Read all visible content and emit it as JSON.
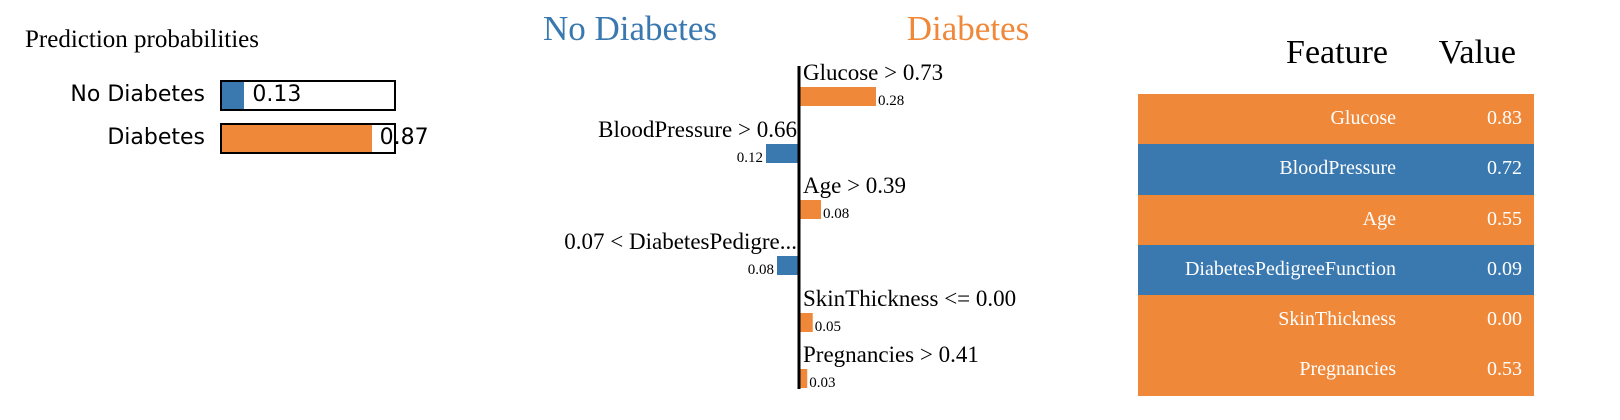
{
  "colors": {
    "negative": "#3a78b0",
    "positive": "#f0883a"
  },
  "probabilities": {
    "title": "Prediction probabilities",
    "rows": [
      {
        "label": "No Diabetes",
        "value": 0.13,
        "value_text": "0.13",
        "color": "#3a78b0"
      },
      {
        "label": "Diabetes",
        "value": 0.87,
        "value_text": "0.87",
        "color": "#f0883a"
      }
    ]
  },
  "chart_data": {
    "type": "bar",
    "orientation": "horizontal-diverging",
    "class_labels": {
      "negative": "No Diabetes",
      "positive": "Diabetes"
    },
    "features": [
      {
        "condition": "Glucose > 0.73",
        "weight": 0.28,
        "weight_text": "0.28",
        "side": "positive"
      },
      {
        "condition": "BloodPressure > 0.66",
        "weight": 0.12,
        "weight_text": "0.12",
        "side": "negative"
      },
      {
        "condition": "Age > 0.39",
        "weight": 0.08,
        "weight_text": "0.08",
        "side": "positive"
      },
      {
        "condition": "0.07 < DiabetesPedigre...",
        "weight": 0.08,
        "weight_text": "0.08",
        "side": "negative"
      },
      {
        "condition": "SkinThickness <= 0.00",
        "weight": 0.05,
        "weight_text": "0.05",
        "side": "positive"
      },
      {
        "condition": "Pregnancies > 0.41",
        "weight": 0.03,
        "weight_text": "0.03",
        "side": "positive"
      }
    ],
    "xlim": [
      -0.32,
      0.32
    ],
    "grid": false,
    "legend": "none"
  },
  "feature_table": {
    "header_feature": "Feature",
    "header_value": "Value",
    "rows": [
      {
        "feature": "Glucose",
        "value": "0.83",
        "side": "positive"
      },
      {
        "feature": "BloodPressure",
        "value": "0.72",
        "side": "negative"
      },
      {
        "feature": "Age",
        "value": "0.55",
        "side": "positive"
      },
      {
        "feature": "DiabetesPedigreeFunction",
        "value": "0.09",
        "side": "negative"
      },
      {
        "feature": "SkinThickness",
        "value": "0.00",
        "side": "positive"
      },
      {
        "feature": "Pregnancies",
        "value": "0.53",
        "side": "positive"
      }
    ]
  }
}
